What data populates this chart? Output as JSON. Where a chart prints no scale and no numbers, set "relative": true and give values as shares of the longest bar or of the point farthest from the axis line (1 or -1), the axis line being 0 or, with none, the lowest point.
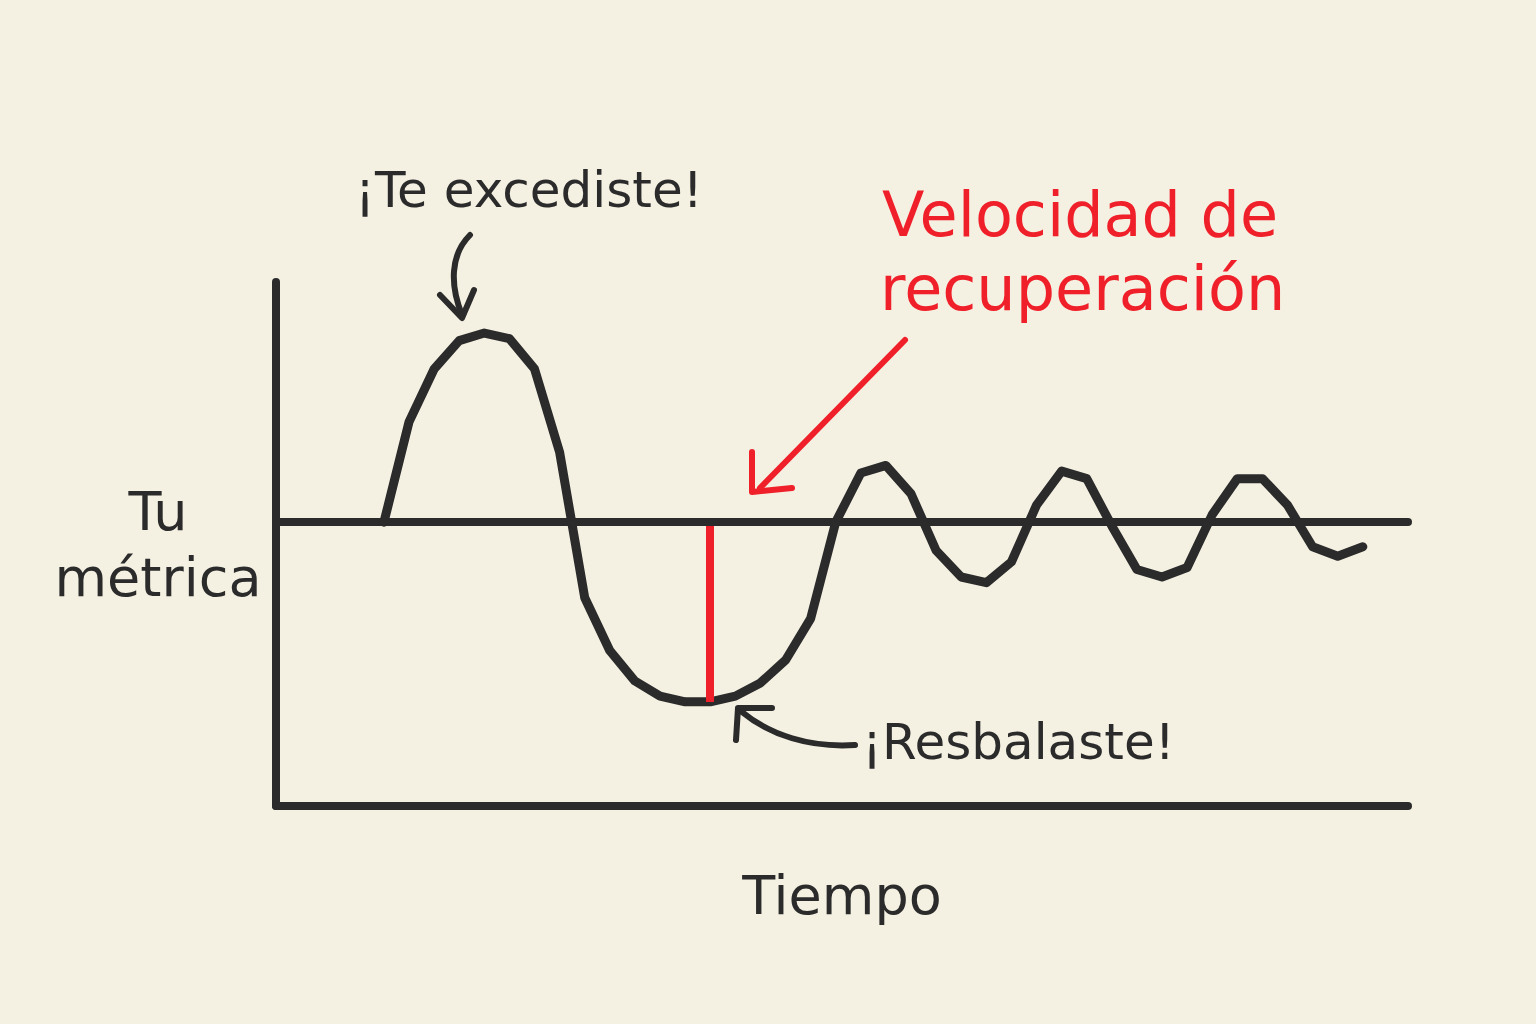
{
  "chart_data": {
    "type": "line",
    "relative": true,
    "xlabel": "Tiempo",
    "ylabel": "Tu métrica",
    "tick_labels": false,
    "line_style": "solid",
    "categories": [
      null,
      null,
      null,
      null,
      null,
      null,
      null,
      null,
      null,
      null,
      null,
      null,
      null,
      null,
      null,
      null,
      null,
      null,
      null,
      null,
      null,
      null,
      null,
      null,
      null,
      null,
      null,
      null,
      null,
      null,
      null,
      null,
      null,
      null,
      null,
      null,
      null,
      null,
      null,
      null
    ],
    "series": [
      {
        "color": "#2b2b2b",
        "values": [
          0,
          0.53,
          0.81,
          0.96,
          1,
          0.97,
          0.81,
          0.37,
          -0.4,
          -0.68,
          -0.84,
          -0.92,
          -0.95,
          -0.95,
          -0.92,
          -0.85,
          -0.73,
          -0.51,
          0,
          0.26,
          0.3,
          0.15,
          -0.15,
          -0.29,
          -0.32,
          -0.21,
          0.09,
          0.27,
          0.23,
          -0.02,
          -0.25,
          -0.29,
          -0.24,
          0.04,
          0.23,
          0.23,
          0.09,
          -0.13,
          -0.18,
          -0.13
        ]
      }
    ],
    "annotations": [
      "¡Te excediste!",
      "Velocidad de recuperación",
      "¡Resbalaste!"
    ]
  }
}
